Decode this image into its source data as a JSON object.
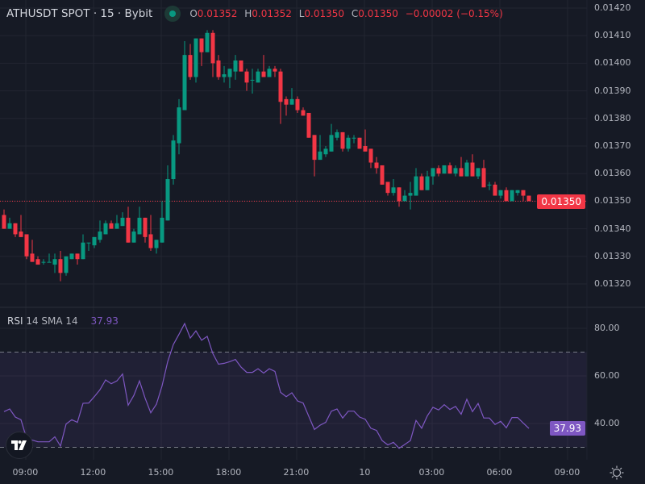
{
  "header": {
    "symbol_title": "ATHUSDT SPOT · 15 · Bybit",
    "market_status": "open",
    "ohlc": {
      "o_label": "O",
      "o": "0.01352",
      "h_label": "H",
      "h": "0.01352",
      "l_label": "L",
      "l": "0.01350",
      "c_label": "C",
      "c": "0.01350",
      "change": "−0.00002 (−0.15%)"
    }
  },
  "rsi_legend": {
    "name": "RSI",
    "params": "14 SMA 14",
    "value": "37.93"
  },
  "current_price_label": "0.01350",
  "current_rsi_label": "37.93",
  "colors": {
    "background": "#161a25",
    "up": "#089981",
    "down": "#f23645",
    "rsi_line": "#7e57c2",
    "grid": "#222531"
  },
  "icons": {
    "status": "green-dot-icon",
    "logo": "tradingview-logo-icon",
    "settings": "gear-icon"
  },
  "chart_data": [
    {
      "type": "candlestick",
      "interval": "15",
      "price_axis": {
        "ticks": [
          "0.01420",
          "0.01410",
          "0.01400",
          "0.01390",
          "0.01380",
          "0.01370",
          "0.01360",
          "0.01350",
          "0.01340",
          "0.01330",
          "0.01320"
        ],
        "ylim": [
          0.01315,
          0.01422
        ]
      },
      "time_axis": {
        "ticks": [
          "09:00",
          "12:00",
          "15:00",
          "18:00",
          "21:00",
          "10",
          "03:00",
          "06:00",
          "09:00"
        ]
      },
      "candles": [
        [
          "08:00",
          0.01345,
          0.01347,
          0.0134,
          0.0134
        ],
        [
          "08:15",
          0.0134,
          0.01344,
          0.0134,
          0.01342
        ],
        [
          "08:30",
          0.01342,
          0.01342,
          0.01337,
          0.01338
        ],
        [
          "08:45",
          0.01339,
          0.01345,
          0.01337,
          0.01337
        ],
        [
          "09:00",
          0.01338,
          0.01338,
          0.01329,
          0.0133
        ],
        [
          "09:15",
          0.01331,
          0.01336,
          0.01328,
          0.01328
        ],
        [
          "09:30",
          0.01329,
          0.0133,
          0.01327,
          0.01327
        ],
        [
          "09:45",
          0.01328,
          0.01329,
          0.01327,
          0.01328
        ],
        [
          "10:00",
          0.01328,
          0.01331,
          0.01328,
          0.01328
        ],
        [
          "10:15",
          0.01327,
          0.01331,
          0.01324,
          0.01329
        ],
        [
          "10:30",
          0.01329,
          0.01332,
          0.01321,
          0.01324
        ],
        [
          "10:45",
          0.01324,
          0.0133,
          0.01323,
          0.0133
        ],
        [
          "11:00",
          0.01329,
          0.01331,
          0.01329,
          0.01331
        ],
        [
          "11:15",
          0.01331,
          0.01331,
          0.01327,
          0.01329
        ],
        [
          "11:30",
          0.01329,
          0.01338,
          0.01329,
          0.01335
        ],
        [
          "11:45",
          0.01335,
          0.01335,
          0.01332,
          0.01335
        ],
        [
          "12:00",
          0.01334,
          0.01337,
          0.01333,
          0.01337
        ],
        [
          "12:15",
          0.01336,
          0.01343,
          0.01335,
          0.01339
        ],
        [
          "12:30",
          0.01338,
          0.01343,
          0.01338,
          0.01342
        ],
        [
          "12:45",
          0.01342,
          0.01343,
          0.0134,
          0.0134
        ],
        [
          "13:00",
          0.0134,
          0.01345,
          0.0134,
          0.01342
        ],
        [
          "13:15",
          0.01341,
          0.01346,
          0.01341,
          0.01344
        ],
        [
          "13:30",
          0.01344,
          0.01348,
          0.01335,
          0.01335
        ],
        [
          "13:45",
          0.01335,
          0.0134,
          0.01335,
          0.01339
        ],
        [
          "14:00",
          0.01338,
          0.01348,
          0.01338,
          0.01344
        ],
        [
          "14:15",
          0.01344,
          0.01344,
          0.01335,
          0.01337
        ],
        [
          "14:30",
          0.01338,
          0.01345,
          0.01332,
          0.01333
        ],
        [
          "14:45",
          0.01333,
          0.01336,
          0.01331,
          0.01336
        ],
        [
          "15:00",
          0.01335,
          0.0135,
          0.01335,
          0.01344
        ],
        [
          "15:15",
          0.01343,
          0.01363,
          0.01343,
          0.01358
        ],
        [
          "15:30",
          0.01358,
          0.01374,
          0.01356,
          0.01372
        ],
        [
          "15:45",
          0.01371,
          0.01387,
          0.01367,
          0.01384
        ],
        [
          "16:00",
          0.01383,
          0.01408,
          0.01383,
          0.01403
        ],
        [
          "16:15",
          0.01403,
          0.01407,
          0.01394,
          0.01395
        ],
        [
          "16:30",
          0.01395,
          0.01409,
          0.01393,
          0.01409
        ],
        [
          "16:45",
          0.01409,
          0.01409,
          0.01399,
          0.01404
        ],
        [
          "17:00",
          0.01404,
          0.01412,
          0.01404,
          0.01411
        ],
        [
          "17:15",
          0.01411,
          0.01412,
          0.01395,
          0.014
        ],
        [
          "17:30",
          0.01401,
          0.01403,
          0.01394,
          0.01395
        ],
        [
          "17:45",
          0.01395,
          0.01399,
          0.01393,
          0.01396
        ],
        [
          "18:00",
          0.01395,
          0.01398,
          0.01391,
          0.01398
        ],
        [
          "18:15",
          0.01397,
          0.01403,
          0.01394,
          0.01401
        ],
        [
          "18:30",
          0.01401,
          0.01401,
          0.01397,
          0.01397
        ],
        [
          "18:45",
          0.01397,
          0.01398,
          0.0139,
          0.01393
        ],
        [
          "19:00",
          0.01394,
          0.01398,
          0.01389,
          0.01394
        ],
        [
          "19:15",
          0.01393,
          0.01398,
          0.01393,
          0.01397
        ],
        [
          "19:30",
          0.01397,
          0.01403,
          0.01395,
          0.01395
        ],
        [
          "19:45",
          0.01395,
          0.01399,
          0.01395,
          0.01398
        ],
        [
          "20:00",
          0.01398,
          0.01399,
          0.01395,
          0.01397
        ],
        [
          "20:15",
          0.01397,
          0.01398,
          0.01378,
          0.01386
        ],
        [
          "20:30",
          0.01387,
          0.01388,
          0.01381,
          0.01385
        ],
        [
          "20:45",
          0.01385,
          0.01391,
          0.01385,
          0.01387
        ],
        [
          "21:00",
          0.01387,
          0.01388,
          0.01382,
          0.01383
        ],
        [
          "21:15",
          0.01383,
          0.01384,
          0.01381,
          0.01381
        ],
        [
          "21:30",
          0.01382,
          0.01382,
          0.01373,
          0.01373
        ],
        [
          "21:45",
          0.01374,
          0.01374,
          0.01359,
          0.01365
        ],
        [
          "22:00",
          0.01365,
          0.01374,
          0.01365,
          0.01368
        ],
        [
          "22:15",
          0.01367,
          0.0137,
          0.01366,
          0.01369
        ],
        [
          "22:30",
          0.01368,
          0.01378,
          0.01368,
          0.01374
        ],
        [
          "22:45",
          0.01373,
          0.01376,
          0.01372,
          0.01375
        ],
        [
          "23:00",
          0.01375,
          0.01375,
          0.01368,
          0.01369
        ],
        [
          "23:15",
          0.01369,
          0.01374,
          0.01368,
          0.01373
        ],
        [
          "23:30",
          0.01373,
          0.01374,
          0.01371,
          0.01373
        ],
        [
          "23:45",
          0.01373,
          0.01373,
          0.01369,
          0.01369
        ],
        [
          "00:00",
          0.0137,
          0.01376,
          0.01368,
          0.01368
        ],
        [
          "00:15",
          0.01369,
          0.01369,
          0.01362,
          0.01364
        ],
        [
          "00:30",
          0.01364,
          0.01366,
          0.0136,
          0.01362
        ],
        [
          "00:45",
          0.01363,
          0.01363,
          0.01356,
          0.01356
        ],
        [
          "01:00",
          0.01357,
          0.01357,
          0.01352,
          0.01353
        ],
        [
          "01:15",
          0.01353,
          0.01358,
          0.01352,
          0.01355
        ],
        [
          "01:30",
          0.01355,
          0.01355,
          0.01348,
          0.0135
        ],
        [
          "01:45",
          0.0135,
          0.01354,
          0.0135,
          0.01352
        ],
        [
          "02:00",
          0.01352,
          0.01357,
          0.01347,
          0.01353
        ],
        [
          "02:15",
          0.01352,
          0.01362,
          0.01352,
          0.01359
        ],
        [
          "02:30",
          0.01359,
          0.0136,
          0.01354,
          0.01354
        ],
        [
          "02:45",
          0.01354,
          0.01361,
          0.01354,
          0.01359
        ],
        [
          "03:00",
          0.01359,
          0.01362,
          0.01356,
          0.01362
        ],
        [
          "03:15",
          0.01362,
          0.01363,
          0.01359,
          0.0136
        ],
        [
          "03:30",
          0.0136,
          0.01363,
          0.0136,
          0.01363
        ],
        [
          "03:45",
          0.01363,
          0.01364,
          0.0136,
          0.0136
        ],
        [
          "04:00",
          0.0136,
          0.01363,
          0.01359,
          0.01362
        ],
        [
          "04:15",
          0.01362,
          0.01366,
          0.01359,
          0.01359
        ],
        [
          "04:30",
          0.01359,
          0.01365,
          0.01359,
          0.01364
        ],
        [
          "04:45",
          0.01364,
          0.01367,
          0.01359,
          0.01359
        ],
        [
          "05:00",
          0.01359,
          0.01362,
          0.01358,
          0.01362
        ],
        [
          "05:15",
          0.01362,
          0.01365,
          0.01355,
          0.01355
        ],
        [
          "05:30",
          0.01356,
          0.01357,
          0.01354,
          0.01356
        ],
        [
          "05:45",
          0.01356,
          0.01357,
          0.01352,
          0.01352
        ],
        [
          "06:00",
          0.01352,
          0.01354,
          0.01351,
          0.01354
        ],
        [
          "06:15",
          0.01354,
          0.01355,
          0.0135,
          0.0135
        ],
        [
          "06:30",
          0.0135,
          0.01354,
          0.0135,
          0.01354
        ],
        [
          "06:45",
          0.01353,
          0.01354,
          0.01352,
          0.01354
        ],
        [
          "07:00",
          0.01354,
          0.01354,
          0.0135,
          0.01352
        ],
        [
          "07:15",
          0.01352,
          0.01352,
          0.0135,
          0.0135
        ]
      ],
      "last_price": 0.0135
    },
    {
      "type": "line",
      "name": "RSI",
      "y_axis": {
        "ticks": [
          "80.00",
          "60.00",
          "40.00"
        ],
        "ylim": [
          25,
          85
        ]
      },
      "bands": {
        "upper": 70,
        "lower": 30
      },
      "values": [
        45.0,
        46.1,
        42.7,
        41.6,
        33.7,
        33.0,
        32.3,
        32.3,
        32.3,
        34.4,
        30.5,
        39.8,
        41.6,
        40.5,
        48.5,
        48.6,
        51.3,
        54.2,
        58.3,
        56.7,
        57.9,
        60.8,
        47.7,
        51.8,
        57.9,
        50.6,
        44.5,
        48.1,
        55.8,
        66.0,
        73.2,
        77.5,
        82.0,
        75.9,
        78.9,
        75.0,
        76.6,
        69.4,
        64.9,
        65.3,
        66.0,
        66.9,
        63.7,
        61.5,
        61.5,
        63.0,
        61.2,
        63.0,
        61.9,
        53.1,
        51.3,
        52.9,
        49.5,
        48.6,
        43.0,
        37.5,
        39.3,
        40.5,
        45.2,
        46.1,
        42.3,
        45.2,
        45.2,
        42.7,
        41.8,
        38.0,
        37.1,
        32.8,
        31.0,
        32.1,
        29.6,
        31.2,
        32.8,
        41.3,
        38.0,
        43.2,
        46.8,
        45.7,
        47.9,
        45.9,
        47.2,
        43.9,
        50.2,
        45.0,
        48.4,
        42.3,
        42.3,
        39.6,
        40.9,
        38.2,
        42.5,
        42.5,
        40.2,
        37.93
      ]
    }
  ]
}
